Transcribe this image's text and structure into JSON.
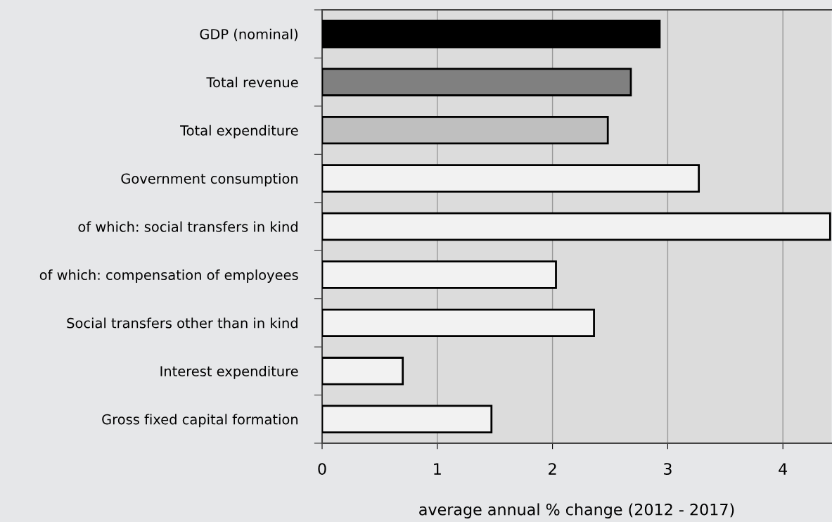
{
  "chart_data": {
    "type": "bar",
    "orientation": "horizontal",
    "xlabel": "average annual % change (2012 - 2017)",
    "categories": [
      "GDP (nominal)",
      "Total revenue",
      "Total expenditure",
      "Government consumption",
      "of which: social transfers in kind",
      "of which: compensation of employees",
      "Social transfers other than in kind",
      "Interest expenditure",
      "Gross fixed capital formation"
    ],
    "values": [
      2.93,
      2.68,
      2.48,
      3.27,
      4.41,
      2.03,
      2.36,
      0.7,
      1.47
    ],
    "colors": [
      "#000000",
      "#808080",
      "#bfbfbf",
      "#f2f2f2",
      "#f2f2f2",
      "#f2f2f2",
      "#f2f2f2",
      "#f2f2f2",
      "#f2f2f2"
    ],
    "xlim": [
      0,
      4.42
    ],
    "xticks": [
      0,
      1,
      2,
      3,
      4
    ],
    "grid": "x",
    "legend": false
  }
}
